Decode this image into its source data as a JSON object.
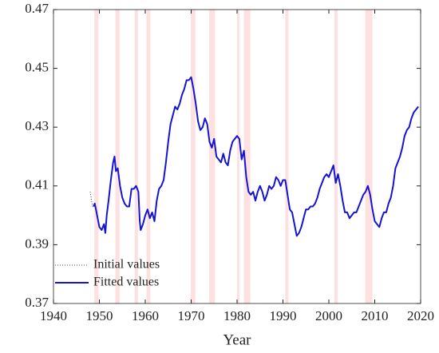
{
  "chart_data": {
    "type": "line",
    "xlabel": "Year",
    "xlim": [
      1940,
      2020
    ],
    "xticks": [
      1940,
      1950,
      1960,
      1970,
      1980,
      1990,
      2000,
      2010,
      2020
    ],
    "ylim": [
      0.37,
      0.47
    ],
    "yticks": [
      0.37,
      0.39,
      0.41,
      0.43,
      0.45,
      0.47
    ],
    "legend": "lower left",
    "shaded_color": "#fde0e0",
    "shaded_periods": [
      [
        1948.9,
        1949.8
      ],
      [
        1953.5,
        1954.4
      ],
      [
        1957.7,
        1958.4
      ],
      [
        1960.3,
        1961.1
      ],
      [
        1969.9,
        1970.9
      ],
      [
        1973.9,
        1975.2
      ],
      [
        1980.0,
        1980.5
      ],
      [
        1981.5,
        1982.9
      ],
      [
        1990.5,
        1991.2
      ],
      [
        2001.2,
        2001.9
      ],
      [
        2007.9,
        2009.5
      ]
    ],
    "series": [
      {
        "name": "Initial values",
        "color": "#444444",
        "style": "dotted",
        "x": [
          1948.0,
          1948.5
        ],
        "values": [
          0.408,
          0.403
        ]
      },
      {
        "name": "Fitted values",
        "color": "#1414d2",
        "style": "solid",
        "x": [
          1948.7,
          1949,
          1949.5,
          1950,
          1950.5,
          1951,
          1951.3,
          1951.6,
          1952,
          1952.5,
          1953,
          1953.3,
          1953.6,
          1954,
          1954.5,
          1955,
          1955.5,
          1956,
          1956.5,
          1957,
          1957.5,
          1958,
          1958.5,
          1958.8,
          1959,
          1959.5,
          1960,
          1960.5,
          1961,
          1961.5,
          1962,
          1962.5,
          1963,
          1963.5,
          1964,
          1964.5,
          1965,
          1965.5,
          1966,
          1966.5,
          1967,
          1967.5,
          1968,
          1968.5,
          1969,
          1969.5,
          1970,
          1970.5,
          1971,
          1971.5,
          1972,
          1972.5,
          1973,
          1973.5,
          1974,
          1974.5,
          1975,
          1975.5,
          1976,
          1976.5,
          1977,
          1977.5,
          1978,
          1978.5,
          1979,
          1979.5,
          1980,
          1980.5,
          1981,
          1981.5,
          1982,
          1982.5,
          1983,
          1983.5,
          1984,
          1984.5,
          1985,
          1985.5,
          1986,
          1986.5,
          1987,
          1987.5,
          1988,
          1988.5,
          1989,
          1989.5,
          1990,
          1990.5,
          1991,
          1991.5,
          1992,
          1992.5,
          1993,
          1993.5,
          1994,
          1994.5,
          1995,
          1995.5,
          1996,
          1996.5,
          1997,
          1997.5,
          1998,
          1998.5,
          1999,
          1999.5,
          2000,
          2000.5,
          2001,
          2001.5,
          2002,
          2002.5,
          2003,
          2003.5,
          2004,
          2004.5,
          2005,
          2005.5,
          2006,
          2006.5,
          2007,
          2007.5,
          2008,
          2008.5,
          2009,
          2009.5,
          2010,
          2010.5,
          2011,
          2011.5,
          2012,
          2012.5,
          2013,
          2013.5,
          2014,
          2014.5,
          2015,
          2015.5,
          2016,
          2016.5,
          2017,
          2017.5,
          2018,
          2018.5,
          2019,
          2019.5
        ],
        "values": [
          0.403,
          0.404,
          0.4,
          0.396,
          0.395,
          0.397,
          0.394,
          0.4,
          0.405,
          0.412,
          0.418,
          0.42,
          0.415,
          0.416,
          0.41,
          0.406,
          0.404,
          0.403,
          0.403,
          0.409,
          0.409,
          0.41,
          0.408,
          0.398,
          0.395,
          0.397,
          0.4,
          0.402,
          0.399,
          0.401,
          0.398,
          0.405,
          0.409,
          0.41,
          0.412,
          0.418,
          0.425,
          0.431,
          0.434,
          0.437,
          0.436,
          0.438,
          0.441,
          0.443,
          0.446,
          0.446,
          0.447,
          0.443,
          0.438,
          0.432,
          0.429,
          0.43,
          0.433,
          0.431,
          0.425,
          0.423,
          0.426,
          0.42,
          0.419,
          0.418,
          0.421,
          0.418,
          0.417,
          0.422,
          0.425,
          0.426,
          0.427,
          0.426,
          0.419,
          0.422,
          0.413,
          0.408,
          0.407,
          0.408,
          0.405,
          0.408,
          0.41,
          0.408,
          0.405,
          0.407,
          0.41,
          0.409,
          0.41,
          0.413,
          0.412,
          0.41,
          0.412,
          0.412,
          0.407,
          0.402,
          0.401,
          0.397,
          0.393,
          0.394,
          0.396,
          0.399,
          0.402,
          0.402,
          0.403,
          0.403,
          0.404,
          0.406,
          0.409,
          0.411,
          0.413,
          0.414,
          0.413,
          0.415,
          0.417,
          0.411,
          0.414,
          0.41,
          0.405,
          0.401,
          0.401,
          0.399,
          0.4,
          0.401,
          0.401,
          0.403,
          0.405,
          0.407,
          0.408,
          0.41,
          0.407,
          0.402,
          0.398,
          0.397,
          0.396,
          0.399,
          0.401,
          0.401,
          0.404,
          0.406,
          0.41,
          0.416,
          0.418,
          0.42,
          0.423,
          0.427,
          0.429,
          0.43,
          0.433,
          0.435,
          0.436,
          0.437
        ]
      }
    ]
  }
}
